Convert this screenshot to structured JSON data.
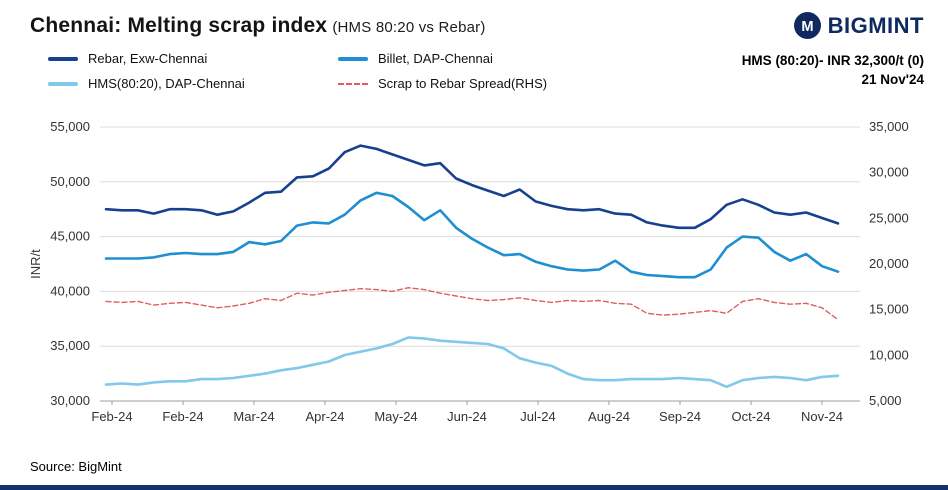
{
  "header": {
    "title": "Chennai: Melting scrap index",
    "subtitle": "(HMS 80:20 vs Rebar)",
    "brand": "BIGMINT"
  },
  "annotation": {
    "line1": "HMS (80:20)- INR 32,300/t (0)",
    "line2": "21 Nov'24"
  },
  "legend": [
    {
      "label": "Rebar, Exw-Chennai",
      "color": "#17418e",
      "dashed": false
    },
    {
      "label": "Billet, DAP-Chennai",
      "color": "#1e8fd2",
      "dashed": false
    },
    {
      "label": "HMS(80:20), DAP-Chennai",
      "color": "#82c8ea",
      "dashed": false
    },
    {
      "label": "Scrap to Rebar Spread(RHS)",
      "color": "#de5f5f",
      "dashed": true
    }
  ],
  "source": "Source: BigMint",
  "colors": {
    "brand_navy": "#102a61",
    "bottom_bar": "#14306e",
    "gridline": "#dcdcdc",
    "axis_line": "#9e9e9e",
    "axis_text": "#333333"
  },
  "chart_data": {
    "type": "line",
    "title": "Chennai: Melting scrap index (HMS 80:20 vs Rebar)",
    "ylabel_left": "INR/t",
    "y_left": {
      "min": 30000,
      "max": 55000,
      "step": 5000
    },
    "y_right": {
      "min": 5000,
      "max": 35000,
      "step": 5000
    },
    "grid": true,
    "legend_position": "top",
    "x_ticks": [
      "Feb-24",
      "Feb-24",
      "Mar-24",
      "Apr-24",
      "May-24",
      "Jun-24",
      "Jul-24",
      "Aug-24",
      "Sep-24",
      "Oct-24",
      "Nov-24"
    ],
    "series": [
      {
        "name": "Rebar, Exw-Chennai",
        "axis": "left",
        "color": "#17418e",
        "width": 2.6,
        "dashed": false,
        "values": [
          47500,
          47400,
          47400,
          47100,
          47500,
          47500,
          47400,
          47000,
          47300,
          48100,
          49000,
          49100,
          50400,
          50500,
          51200,
          52700,
          53300,
          53000,
          52500,
          52000,
          51500,
          51700,
          50300,
          49700,
          49200,
          48700,
          49300,
          48200,
          47800,
          47500,
          47400,
          47500,
          47100,
          47000,
          46300,
          46000,
          45800,
          45800,
          46600,
          47900,
          48400,
          47900,
          47200,
          47000,
          47200,
          46700,
          46200
        ]
      },
      {
        "name": "Billet, DAP-Chennai",
        "axis": "left",
        "color": "#1e8fd2",
        "width": 2.6,
        "dashed": false,
        "values": [
          43000,
          43000,
          43000,
          43100,
          43400,
          43500,
          43400,
          43400,
          43600,
          44500,
          44300,
          44600,
          46000,
          46300,
          46200,
          47000,
          48300,
          49000,
          48700,
          47700,
          46500,
          47400,
          45800,
          44800,
          44000,
          43300,
          43400,
          42700,
          42300,
          42000,
          41900,
          42000,
          42800,
          41800,
          41500,
          41400,
          41300,
          41300,
          42000,
          44000,
          45000,
          44900,
          43600,
          42800,
          43400,
          42300,
          41800
        ]
      },
      {
        "name": "HMS(80:20), DAP-Chennai",
        "axis": "left",
        "color": "#82c8ea",
        "width": 2.6,
        "dashed": false,
        "values": [
          31500,
          31600,
          31500,
          31700,
          31800,
          31800,
          32000,
          32000,
          32100,
          32300,
          32500,
          32800,
          33000,
          33300,
          33600,
          34200,
          34500,
          34800,
          35200,
          35800,
          35700,
          35500,
          35400,
          35300,
          35200,
          34800,
          33900,
          33500,
          33200,
          32500,
          32000,
          31900,
          31900,
          32000,
          32000,
          32000,
          32100,
          32000,
          31900,
          31300,
          31900,
          32100,
          32200,
          32100,
          31900,
          32200,
          32300
        ]
      },
      {
        "name": "Scrap to Rebar Spread(RHS)",
        "axis": "right",
        "color": "#de5f5f",
        "width": 1.4,
        "dashed": true,
        "values": [
          15900,
          15800,
          15900,
          15500,
          15700,
          15800,
          15500,
          15200,
          15400,
          15700,
          16200,
          16000,
          16800,
          16600,
          16900,
          17100,
          17300,
          17200,
          17000,
          17400,
          17200,
          16800,
          16500,
          16200,
          16000,
          16100,
          16300,
          16000,
          15800,
          16000,
          15900,
          16000,
          15700,
          15600,
          14600,
          14400,
          14500,
          14700,
          14900,
          14600,
          15900,
          16200,
          15800,
          15600,
          15700,
          15200,
          13900
        ]
      }
    ]
  }
}
